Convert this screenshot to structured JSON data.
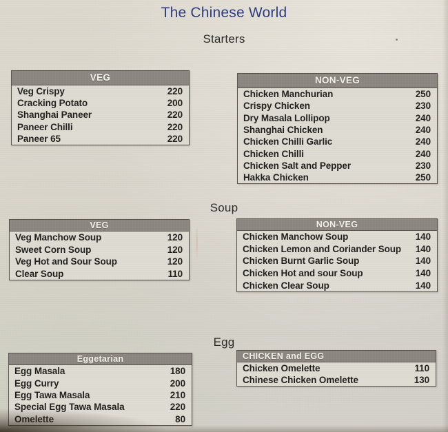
{
  "title": "The Chinese World",
  "sections": [
    {
      "heading": "Starters",
      "tables": [
        {
          "id": "starters-veg",
          "header": "VEG",
          "header_align": "center",
          "items": [
            {
              "name": "Veg Crispy",
              "price": "220"
            },
            {
              "name": "Cracking Potato",
              "price": "200"
            },
            {
              "name": "Shanghai Paneer",
              "price": "220"
            },
            {
              "name": "Paneer Chilli",
              "price": "220"
            },
            {
              "name": "Paneer 65",
              "price": "220"
            }
          ]
        },
        {
          "id": "starters-nonveg",
          "header": "NON-VEG",
          "header_align": "center",
          "items": [
            {
              "name": "Chicken Manchurian",
              "price": "250"
            },
            {
              "name": "Crispy Chicken",
              "price": "230"
            },
            {
              "name": "Dry Masala Lollipop",
              "price": "240"
            },
            {
              "name": "Shanghai Chicken",
              "price": "240"
            },
            {
              "name": "Chicken Chilli Garlic",
              "price": "240"
            },
            {
              "name": "Chicken Chilli",
              "price": "240"
            },
            {
              "name": "Chicken Salt and Pepper",
              "price": "230"
            },
            {
              "name": "Hakka Chicken",
              "price": "250"
            }
          ]
        }
      ]
    },
    {
      "heading": "Soup",
      "tables": [
        {
          "id": "soup-veg",
          "header": "VEG",
          "header_align": "center",
          "items": [
            {
              "name": "Veg Manchow Soup",
              "price": "120"
            },
            {
              "name": "Sweet Corn Soup",
              "price": "120"
            },
            {
              "name": "Veg Hot and Sour Soup",
              "price": "120"
            },
            {
              "name": "Clear Soup",
              "price": "110"
            }
          ]
        },
        {
          "id": "soup-nonveg",
          "header": "NON-VEG",
          "header_align": "center",
          "items": [
            {
              "name": "Chicken Manchow Soup",
              "price": "140"
            },
            {
              "name": "Chicken Lemon and Coriander Soup",
              "price": "140"
            },
            {
              "name": "Chicken Burnt Garlic Soup",
              "price": "140"
            },
            {
              "name": "Chicken Hot and sour Soup",
              "price": "140"
            },
            {
              "name": "Chicken Clear Soup",
              "price": "140"
            }
          ]
        }
      ]
    },
    {
      "heading": "Egg",
      "tables": [
        {
          "id": "egg-veg",
          "header": "Eggetarian",
          "header_align": "center",
          "items": [
            {
              "name": "Egg Masala",
              "price": "180"
            },
            {
              "name": "Egg Curry",
              "price": "200"
            },
            {
              "name": "Egg Tawa Masala",
              "price": "210"
            },
            {
              "name": "Special Egg Tawa Masala",
              "price": "220"
            },
            {
              "name": "Omelette",
              "price": "80"
            }
          ]
        },
        {
          "id": "chicken-egg",
          "header": "CHICKEN and EGG",
          "header_align": "left",
          "items": [
            {
              "name": "Chicken Omelette",
              "price": "110"
            },
            {
              "name": "Chinese Chicken Omelette",
              "price": "130"
            }
          ]
        }
      ]
    }
  ],
  "colors": {
    "title": "#2c3d7d",
    "header_bg": "#8b8780",
    "header_text": "#f4f2ec",
    "table_border": "#56534c",
    "body_text": "#211f1b",
    "background": "#d9d5cc"
  }
}
